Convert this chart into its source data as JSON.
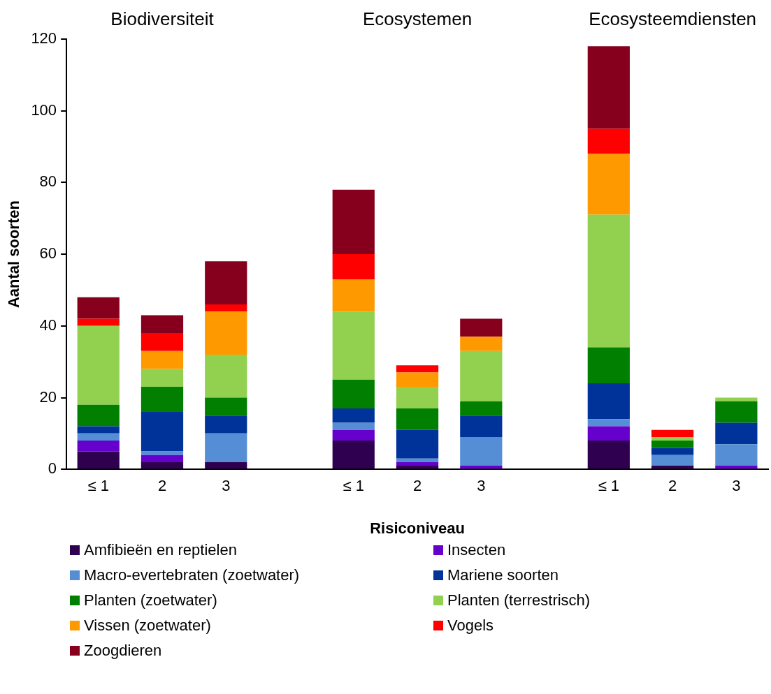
{
  "chart_data": {
    "type": "bar",
    "stacked": true,
    "xlabel": "Risiconiveau",
    "ylabel": "Aantal soorten",
    "annotations": [
      "Biodiversiteit",
      "Ecosystemen",
      "Ecosysteemdiensten"
    ],
    "categories": [
      "≤ 1",
      "2",
      "3",
      null,
      "≤ 1",
      "2",
      "3",
      null,
      "≤ 1",
      "2",
      "3"
    ],
    "ylim": [
      0,
      120
    ],
    "yticks": [
      0,
      20,
      40,
      60,
      80,
      100,
      120
    ],
    "grid": false,
    "legend": "bottom",
    "series": [
      {
        "name": "Amfibieën en reptielen",
        "color": "#2e004f",
        "values": [
          5,
          2,
          2,
          null,
          8,
          1,
          0,
          null,
          8,
          1,
          0
        ]
      },
      {
        "name": "Insecten",
        "color": "#6600cc",
        "values": [
          3,
          2,
          0,
          null,
          3,
          1,
          1,
          null,
          4,
          0,
          1
        ]
      },
      {
        "name": "Macro-evertebraten (zoetwater)",
        "color": "#558ed5",
        "values": [
          2,
          1,
          8,
          null,
          2,
          1,
          8,
          null,
          2,
          3,
          6
        ]
      },
      {
        "name": "Mariene soorten",
        "color": "#003399",
        "values": [
          2,
          11,
          5,
          null,
          4,
          8,
          6,
          null,
          10,
          2,
          6
        ]
      },
      {
        "name": "Planten (zoetwater)",
        "color": "#007f00",
        "values": [
          6,
          7,
          5,
          null,
          8,
          6,
          4,
          null,
          10,
          2,
          6
        ]
      },
      {
        "name": "Planten (terrestrisch)",
        "color": "#92d050",
        "values": [
          22,
          5,
          12,
          null,
          19,
          6,
          14,
          null,
          37,
          1,
          1
        ]
      },
      {
        "name": "Vissen (zoetwater)",
        "color": "#ff9900",
        "values": [
          0,
          5,
          12,
          null,
          9,
          4,
          4,
          null,
          17,
          0,
          0
        ]
      },
      {
        "name": "Vogels",
        "color": "#ff0000",
        "values": [
          2,
          5,
          2,
          null,
          7,
          2,
          0,
          null,
          7,
          2,
          0
        ]
      },
      {
        "name": "Zoogdieren",
        "color": "#86001d",
        "values": [
          6,
          5,
          12,
          null,
          18,
          0,
          5,
          null,
          23,
          0,
          0
        ]
      }
    ]
  }
}
